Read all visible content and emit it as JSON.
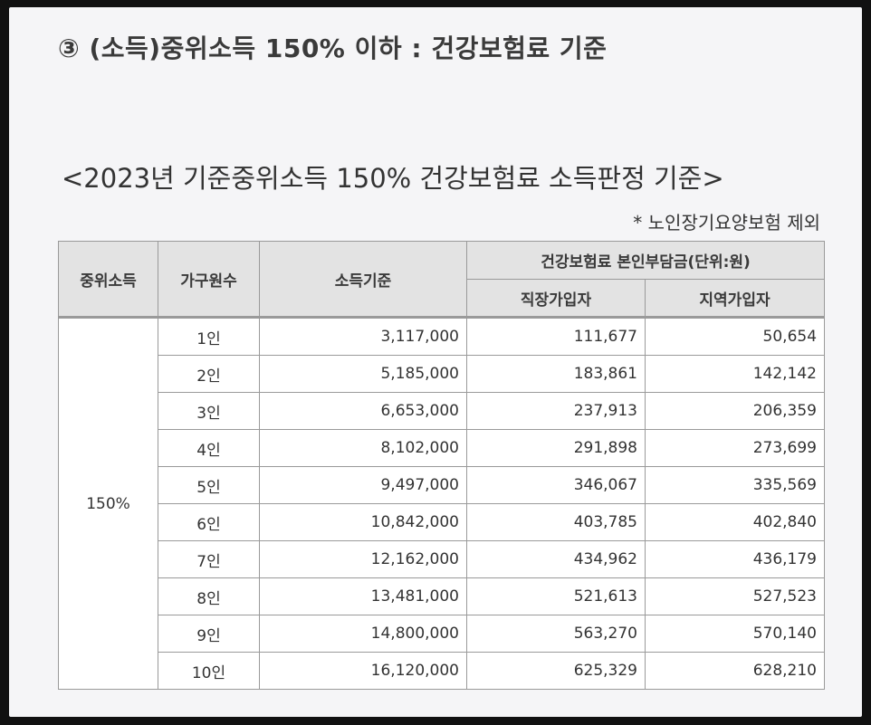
{
  "heading": "③ (소득)중위소득 150% 이하 : 건강보험료 기준",
  "subtitle": "<2023년 기준중위소득 150% 건강보험료 소득판정 기준>",
  "note": "* 노인장기요양보험 제외",
  "table": {
    "headers": {
      "median": "중위소득",
      "household": "가구원수",
      "income": "소득기준",
      "premium": "건강보험료 본인부담금(단위:원)",
      "employee": "직장가입자",
      "regional": "지역가입자"
    },
    "ratio": "150%",
    "rows": [
      {
        "household": "1인",
        "income": "3,117,000",
        "employee": "111,677",
        "regional": "50,654"
      },
      {
        "household": "2인",
        "income": "5,185,000",
        "employee": "183,861",
        "regional": "142,142"
      },
      {
        "household": "3인",
        "income": "6,653,000",
        "employee": "237,913",
        "regional": "206,359"
      },
      {
        "household": "4인",
        "income": "8,102,000",
        "employee": "291,898",
        "regional": "273,699"
      },
      {
        "household": "5인",
        "income": "9,497,000",
        "employee": "346,067",
        "regional": "335,569"
      },
      {
        "household": "6인",
        "income": "10,842,000",
        "employee": "403,785",
        "regional": "402,840"
      },
      {
        "household": "7인",
        "income": "12,162,000",
        "employee": "434,962",
        "regional": "436,179"
      },
      {
        "household": "8인",
        "income": "13,481,000",
        "employee": "521,613",
        "regional": "527,523"
      },
      {
        "household": "9인",
        "income": "14,800,000",
        "employee": "563,270",
        "regional": "570,140"
      },
      {
        "household": "10인",
        "income": "16,120,000",
        "employee": "625,329",
        "regional": "628,210"
      }
    ]
  }
}
